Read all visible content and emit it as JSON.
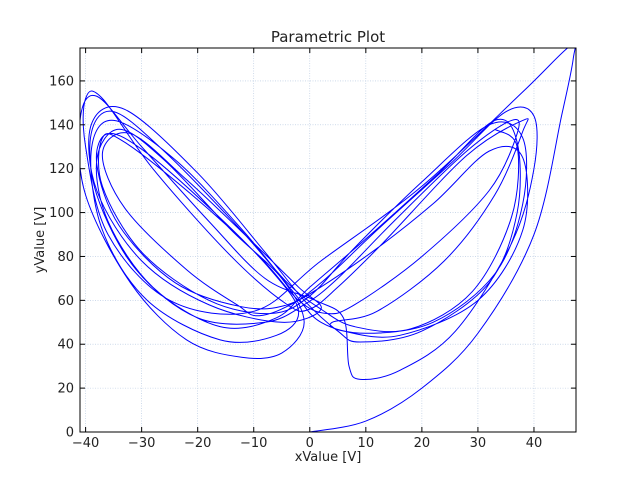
{
  "chart_data": {
    "type": "line",
    "title": "Parametric Plot",
    "xlabel": "xValue [V]",
    "ylabel": "yValue [V]",
    "xlim": [
      -41,
      47.5
    ],
    "ylim": [
      0,
      175
    ],
    "xticks": [
      -40,
      -30,
      -20,
      -10,
      0,
      10,
      20,
      30,
      40
    ],
    "yticks": [
      0,
      20,
      40,
      60,
      80,
      100,
      120,
      140,
      160
    ],
    "xtick_labels": [
      "−40",
      "−30",
      "−20",
      "−10",
      "0",
      "10",
      "20",
      "30",
      "40"
    ],
    "ytick_labels": [
      "0",
      "20",
      "40",
      "60",
      "80",
      "100",
      "120",
      "140",
      "160"
    ],
    "grid": true,
    "series": [
      {
        "color": "#0000ff",
        "points": [
          [
            0,
            0
          ],
          [
            10,
            5
          ],
          [
            20,
            20
          ],
          [
            30,
            45
          ],
          [
            40,
            90
          ],
          [
            45,
            145
          ],
          [
            47,
            170
          ],
          [
            46.5,
            176
          ],
          [
            38,
            155
          ],
          [
            20,
            112
          ],
          [
            2,
            78
          ],
          [
            -10,
            55
          ],
          [
            -25,
            60
          ],
          [
            -36,
            90
          ],
          [
            -40,
            130
          ],
          [
            -40,
            152
          ],
          [
            -37,
            152
          ],
          [
            -28,
            120
          ],
          [
            -14,
            80
          ],
          [
            -4,
            58
          ],
          [
            0,
            56
          ],
          [
            5,
            66
          ],
          [
            13,
            86
          ],
          [
            28,
            126
          ],
          [
            38,
            142
          ],
          [
            38,
            137
          ],
          [
            33,
            108
          ],
          [
            24,
            78
          ],
          [
            12,
            55
          ],
          [
            4,
            50
          ],
          [
            6,
            46
          ],
          [
            16,
            44
          ],
          [
            30,
            60
          ],
          [
            38,
            92
          ],
          [
            38,
            125
          ],
          [
            32,
            128
          ],
          [
            22,
            104
          ],
          [
            10,
            80
          ],
          [
            -2,
            60
          ],
          [
            -9,
            53
          ],
          [
            -13,
            58
          ],
          [
            -22,
            74
          ],
          [
            -33,
            102
          ],
          [
            -37,
            127
          ],
          [
            -32,
            136
          ],
          [
            -22,
            115
          ],
          [
            -10,
            86
          ],
          [
            -2,
            66
          ],
          [
            2,
            56
          ],
          [
            -5,
            50
          ],
          [
            -18,
            58
          ],
          [
            -30,
            78
          ],
          [
            -38,
            110
          ],
          [
            -39,
            140
          ],
          [
            -33,
            147
          ],
          [
            -20,
            118
          ],
          [
            -8,
            82
          ],
          [
            -1,
            60
          ],
          [
            5,
            46
          ],
          [
            9,
            41
          ],
          [
            20,
            46
          ],
          [
            32,
            68
          ],
          [
            37,
            100
          ],
          [
            37,
            132
          ],
          [
            33,
            142
          ],
          [
            23,
            118
          ],
          [
            10,
            88
          ],
          [
            0,
            66
          ],
          [
            -6,
            52
          ],
          [
            -16,
            48
          ],
          [
            -28,
            66
          ],
          [
            -36,
            96
          ],
          [
            -38,
            124
          ],
          [
            -34,
            138
          ],
          [
            -26,
            124
          ],
          [
            -14,
            92
          ],
          [
            -5,
            70
          ],
          [
            -1,
            50
          ],
          [
            -5,
            36
          ],
          [
            -12,
            34
          ],
          [
            -22,
            42
          ],
          [
            -32,
            68
          ],
          [
            -40,
            108
          ],
          [
            -41,
            142
          ],
          [
            -38,
            153
          ],
          [
            -30,
            130
          ],
          [
            -18,
            96
          ],
          [
            -8,
            70
          ],
          [
            1,
            60
          ],
          [
            6,
            52
          ],
          [
            7,
            30
          ],
          [
            9,
            24
          ],
          [
            16,
            28
          ],
          [
            26,
            46
          ],
          [
            36,
            86
          ],
          [
            40,
            120
          ],
          [
            40,
            144
          ],
          [
            35,
            146
          ],
          [
            25,
            122
          ],
          [
            12,
            92
          ],
          [
            2,
            68
          ],
          [
            -4,
            58
          ],
          [
            -12,
            57
          ],
          [
            -24,
            68
          ],
          [
            -34,
            94
          ],
          [
            -38,
            122
          ],
          [
            -36,
            136
          ],
          [
            -29,
            127
          ],
          [
            -17,
            100
          ],
          [
            -7,
            74
          ],
          [
            -2,
            55
          ],
          [
            -6,
            44
          ],
          [
            -16,
            42
          ],
          [
            -29,
            60
          ],
          [
            -37,
            92
          ],
          [
            -39,
            128
          ],
          [
            -35,
            142
          ],
          [
            -24,
            124
          ],
          [
            -12,
            92
          ],
          [
            -3,
            64
          ],
          [
            2,
            50
          ],
          [
            10,
            45
          ],
          [
            22,
            50
          ],
          [
            33,
            72
          ],
          [
            38,
            104
          ],
          [
            38,
            134
          ],
          [
            32,
            140
          ],
          [
            20,
            114
          ],
          [
            8,
            84
          ],
          [
            0,
            62
          ],
          [
            -7,
            54
          ],
          [
            -18,
            60
          ],
          [
            -30,
            82
          ],
          [
            -37,
            112
          ],
          [
            -37,
            134
          ],
          [
            -33,
            132
          ],
          [
            -21,
            108
          ],
          [
            -9,
            80
          ],
          [
            -2,
            60
          ],
          [
            3,
            54
          ],
          [
            8,
            58
          ],
          [
            20,
            80
          ],
          [
            32,
            110
          ],
          [
            37,
            136
          ],
          [
            36,
            142
          ],
          [
            28,
            128
          ],
          [
            15,
            96
          ],
          [
            5,
            70
          ],
          [
            -1,
            58
          ],
          [
            -8,
            50
          ],
          [
            -20,
            52
          ],
          [
            -31,
            74
          ],
          [
            -38,
            108
          ],
          [
            -39,
            136
          ],
          [
            -35,
            146
          ],
          [
            -26,
            128
          ],
          [
            -13,
            94
          ],
          [
            -4,
            68
          ],
          [
            2,
            56
          ],
          [
            8,
            48
          ],
          [
            18,
            47
          ],
          [
            29,
            64
          ],
          [
            36,
            98
          ],
          [
            37,
            130
          ],
          [
            33,
            138
          ]
        ]
      }
    ]
  }
}
